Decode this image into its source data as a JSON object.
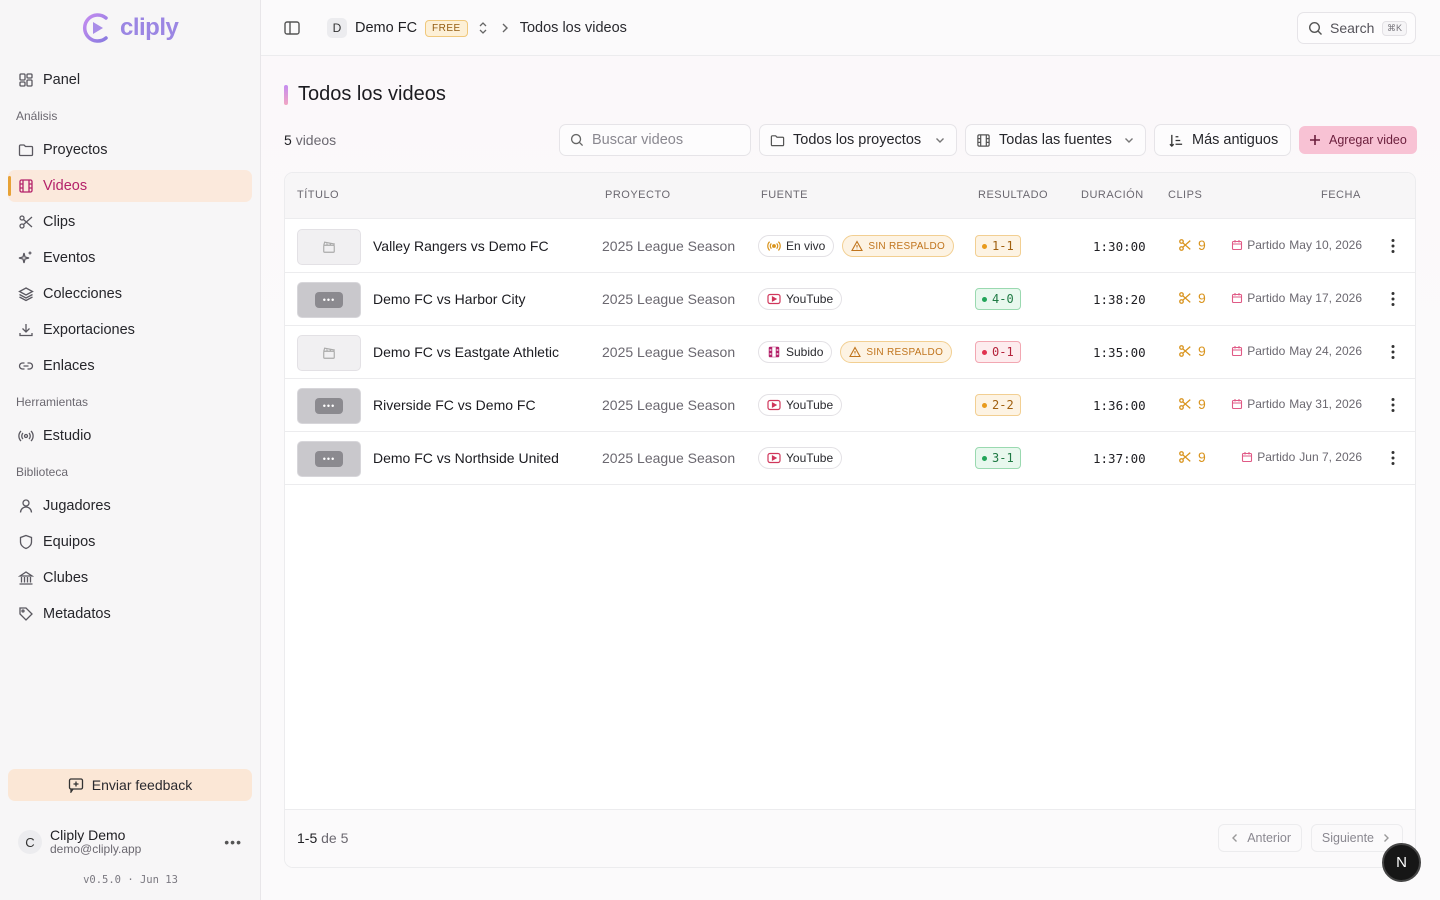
{
  "brand": {
    "name": "cliply"
  },
  "sidebar": {
    "top": [
      {
        "label": "Panel",
        "icon": "grid-icon"
      }
    ],
    "sections": [
      {
        "title": "Análisis",
        "items": [
          {
            "label": "Proyectos",
            "icon": "folder-icon"
          },
          {
            "label": "Videos",
            "icon": "film-icon",
            "active": true
          },
          {
            "label": "Clips",
            "icon": "scissors-icon"
          },
          {
            "label": "Eventos",
            "icon": "sparkles-icon"
          },
          {
            "label": "Colecciones",
            "icon": "layers-icon"
          },
          {
            "label": "Exportaciones",
            "icon": "download-icon"
          },
          {
            "label": "Enlaces",
            "icon": "link-icon"
          }
        ]
      },
      {
        "title": "Herramientas",
        "items": [
          {
            "label": "Estudio",
            "icon": "broadcast-icon"
          }
        ]
      },
      {
        "title": "Biblioteca",
        "items": [
          {
            "label": "Jugadores",
            "icon": "user-icon"
          },
          {
            "label": "Equipos",
            "icon": "shield-icon"
          },
          {
            "label": "Clubes",
            "icon": "building-icon"
          },
          {
            "label": "Metadatos",
            "icon": "tag-icon"
          }
        ]
      }
    ],
    "feedback_label": "Enviar feedback",
    "user": {
      "initial": "C",
      "name": "Cliply Demo",
      "email": "demo@cliply.app"
    },
    "version": "v0.5.0 · Jun 13"
  },
  "topbar": {
    "team_initial": "D",
    "team_name": "Demo FC",
    "plan": "FREE",
    "current": "Todos los videos",
    "search_label": "Search",
    "search_kbd": "⌘K"
  },
  "main": {
    "title": "Todos los videos",
    "count_num": "5",
    "count_label": "videos",
    "search_placeholder": "Buscar videos",
    "project_filter": "Todos los proyectos",
    "source_filter": "Todas las fuentes",
    "sort": "Más antiguos",
    "add_label": "Agregar video"
  },
  "table": {
    "headers": [
      "TÍTULO",
      "PROYECTO",
      "FUENTE",
      "RESULTADO",
      "DURACIÓN",
      "CLIPS",
      "FECHA"
    ],
    "rows": [
      {
        "title": "Valley Rangers vs Demo FC",
        "project": "2025 League Season",
        "source": "En vivo",
        "source_icon": "broadcast-icon",
        "warning": "SIN RESPALDO",
        "result": "1-1",
        "result_kind": "draw",
        "duration": "1:30:00",
        "clips": "9",
        "date_prefix": "Partido",
        "date": "May 10, 2026",
        "thumb": "placeholder"
      },
      {
        "title": "Demo FC vs Harbor City",
        "project": "2025 League Season",
        "source": "YouTube",
        "source_icon": "youtube-icon",
        "warning": "",
        "result": "4-0",
        "result_kind": "win",
        "duration": "1:38:20",
        "clips": "9",
        "date_prefix": "Partido",
        "date": "May 17, 2026",
        "thumb": "video"
      },
      {
        "title": "Demo FC vs Eastgate Athletic",
        "project": "2025 League Season",
        "source": "Subido",
        "source_icon": "film-icon",
        "warning": "SIN RESPALDO",
        "result": "0-1",
        "result_kind": "loss",
        "duration": "1:35:00",
        "clips": "9",
        "date_prefix": "Partido",
        "date": "May 24, 2026",
        "thumb": "placeholder"
      },
      {
        "title": "Riverside FC vs Demo FC",
        "project": "2025 League Season",
        "source": "YouTube",
        "source_icon": "youtube-icon",
        "warning": "",
        "result": "2-2",
        "result_kind": "draw",
        "duration": "1:36:00",
        "clips": "9",
        "date_prefix": "Partido",
        "date": "May 31, 2026",
        "thumb": "video"
      },
      {
        "title": "Demo FC vs Northside United",
        "project": "2025 League Season",
        "source": "YouTube",
        "source_icon": "youtube-icon",
        "warning": "",
        "result": "3-1",
        "result_kind": "win",
        "duration": "1:37:00",
        "clips": "9",
        "date_prefix": "Partido",
        "date": "Jun 7, 2026",
        "thumb": "video"
      }
    ],
    "range": "1-5",
    "range_of": "de 5",
    "prev_label": "Anterior",
    "next_label": "Siguiente"
  },
  "fab_label": "N",
  "colors": {
    "accent": "#b4226a",
    "add_button": "#f8c2d4",
    "clip_icon": "#d9941e",
    "active_bg": "#fbe9dc"
  }
}
